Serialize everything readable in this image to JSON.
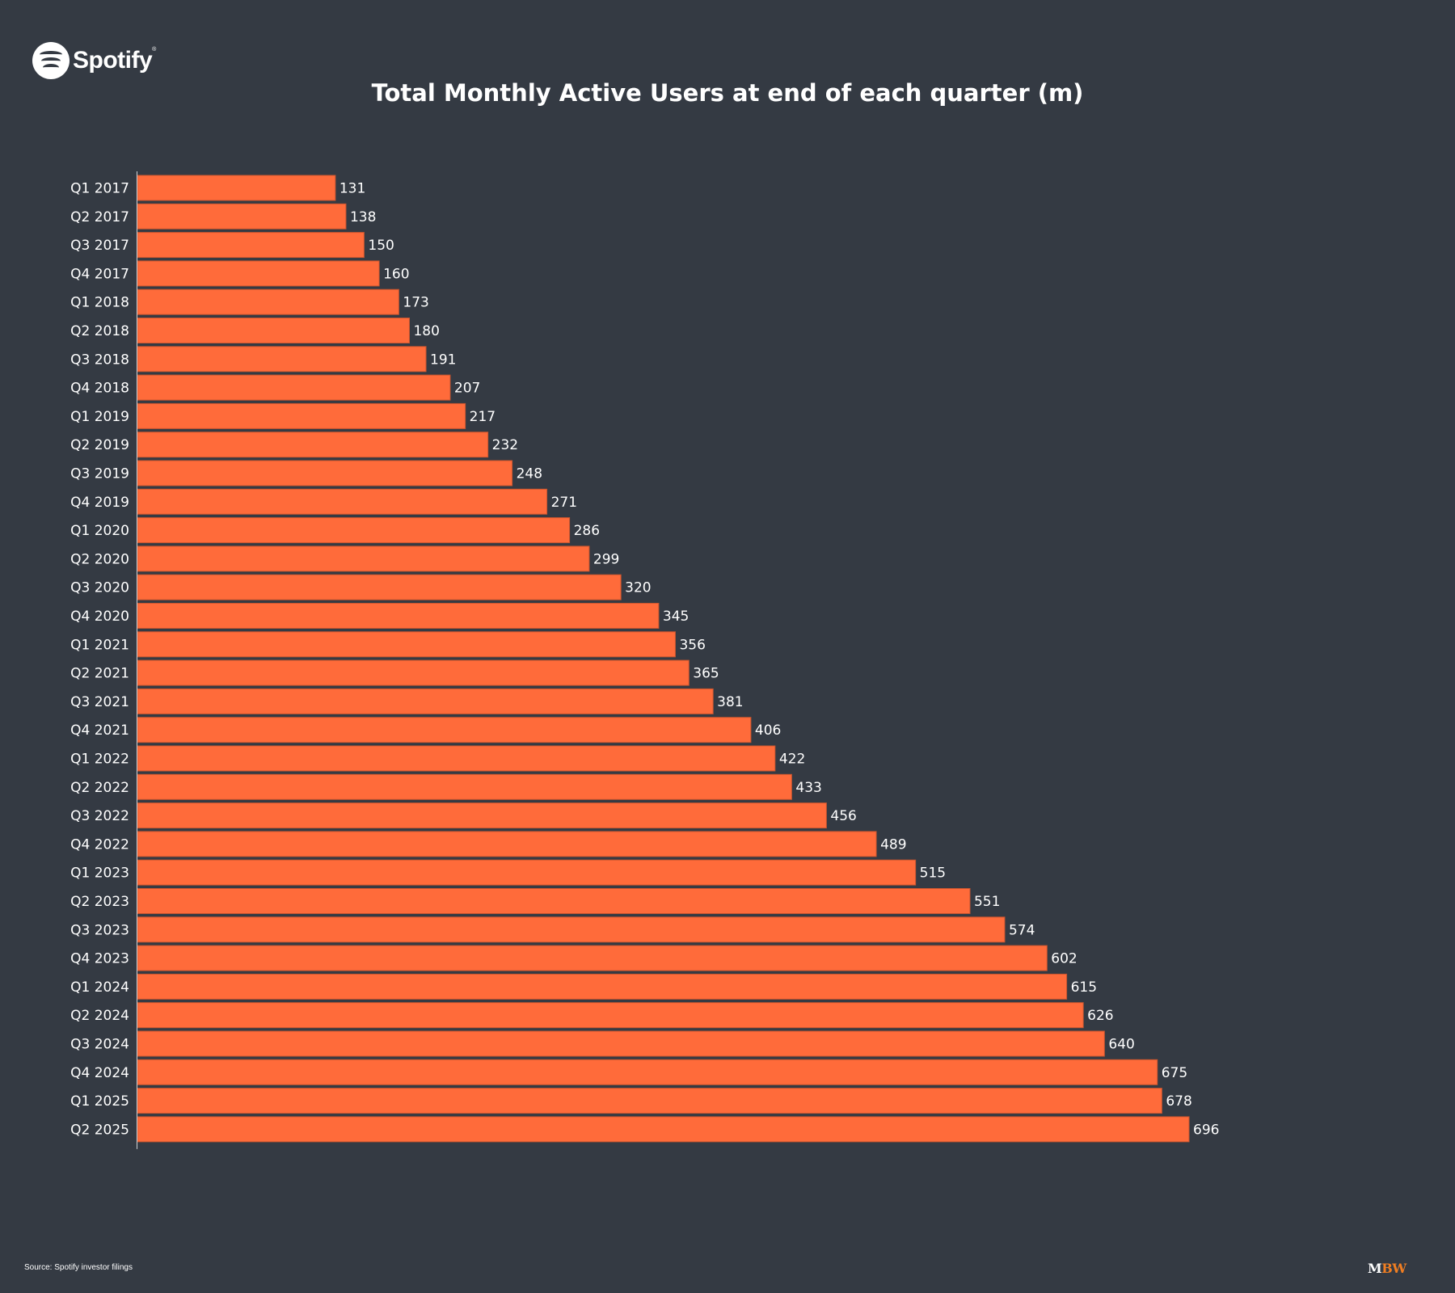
{
  "brand": {
    "logo_text": "Spotify",
    "logo_reg": "®"
  },
  "footer": {
    "source": "Source: Spotify investor filings",
    "publisher_m": "M",
    "publisher_bw": "BW"
  },
  "colors": {
    "background": "#343a43",
    "bar": "#ff6b3a",
    "text": "#ffffff",
    "accent": "#f07e22"
  },
  "chart_data": {
    "type": "bar",
    "orientation": "horizontal",
    "title": "Total Monthly Active Users at end of each quarter (m)",
    "xlabel": "",
    "ylabel": "",
    "xlim": [
      0,
      696
    ],
    "grid": false,
    "legend": "none",
    "categories": [
      "Q1 2017",
      "Q2 2017",
      "Q3 2017",
      "Q4 2017",
      "Q1 2018",
      "Q2 2018",
      "Q3 2018",
      "Q4 2018",
      "Q1 2019",
      "Q2 2019",
      "Q3 2019",
      "Q4 2019",
      "Q1 2020",
      "Q2 2020",
      "Q3 2020",
      "Q4 2020",
      "Q1 2021",
      "Q2 2021",
      "Q3 2021",
      "Q4 2021",
      "Q1 2022",
      "Q2 2022",
      "Q3 2022",
      "Q4 2022",
      "Q1 2023",
      "Q2 2023",
      "Q3 2023",
      "Q4 2023",
      "Q1 2024",
      "Q2 2024",
      "Q3 2024",
      "Q4 2024",
      "Q1 2025",
      "Q2 2025"
    ],
    "values": [
      131,
      138,
      150,
      160,
      173,
      180,
      191,
      207,
      217,
      232,
      248,
      271,
      286,
      299,
      320,
      345,
      356,
      365,
      381,
      406,
      422,
      433,
      456,
      489,
      515,
      551,
      574,
      602,
      615,
      626,
      640,
      675,
      678,
      696
    ]
  }
}
